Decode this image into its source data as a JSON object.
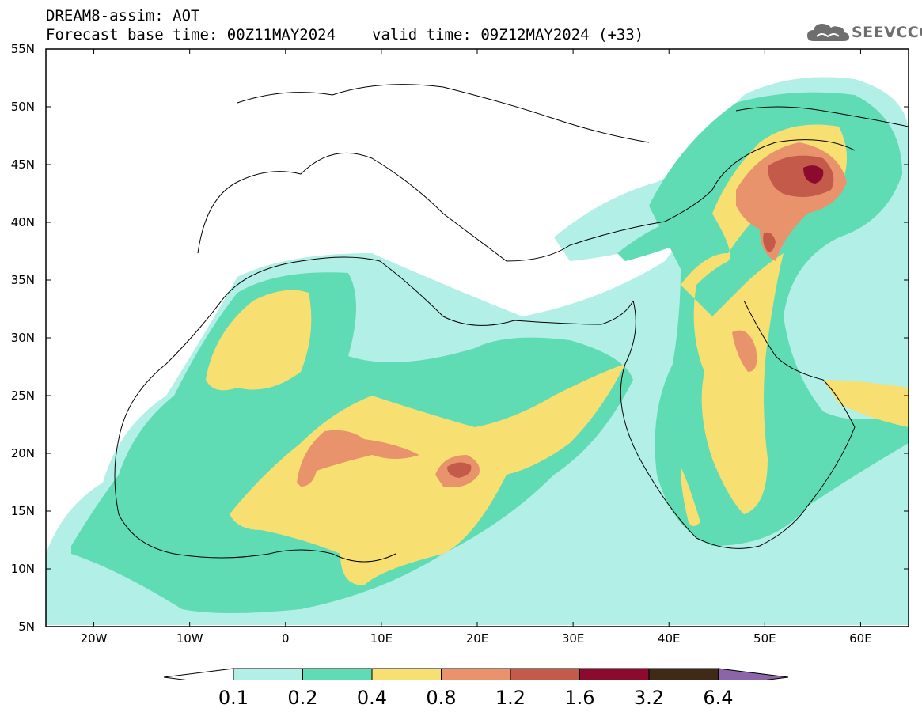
{
  "header": {
    "line1": "DREAM8-assim: AOT",
    "base_time": "Forecast base time: 00Z11MAY2024",
    "valid_time": "valid time: 09Z12MAY2024 (+33)"
  },
  "logo": {
    "text": "SEEVCCC",
    "icon": "cloud-icon"
  },
  "map": {
    "lat_labels": [
      "55N",
      "50N",
      "45N",
      "40N",
      "35N",
      "30N",
      "25N",
      "20N",
      "15N",
      "10N",
      "5N"
    ],
    "lon_labels": [
      "20W",
      "10W",
      "0",
      "10E",
      "20E",
      "30E",
      "40E",
      "50E",
      "60E"
    ],
    "lat_range": [
      5,
      55
    ],
    "lon_range": [
      -25,
      65
    ],
    "field": "Aerosol optical thickness"
  },
  "colorbar": {
    "levels": [
      "0.1",
      "0.2",
      "0.4",
      "0.8",
      "1.2",
      "1.6",
      "3.2",
      "6.4"
    ],
    "colors": [
      "#ffffff",
      "#b2efe6",
      "#5fdcb4",
      "#f7e071",
      "#e9936d",
      "#c45a4a",
      "#8b0a2e",
      "#3f2a18",
      "#8a66a9"
    ]
  }
}
